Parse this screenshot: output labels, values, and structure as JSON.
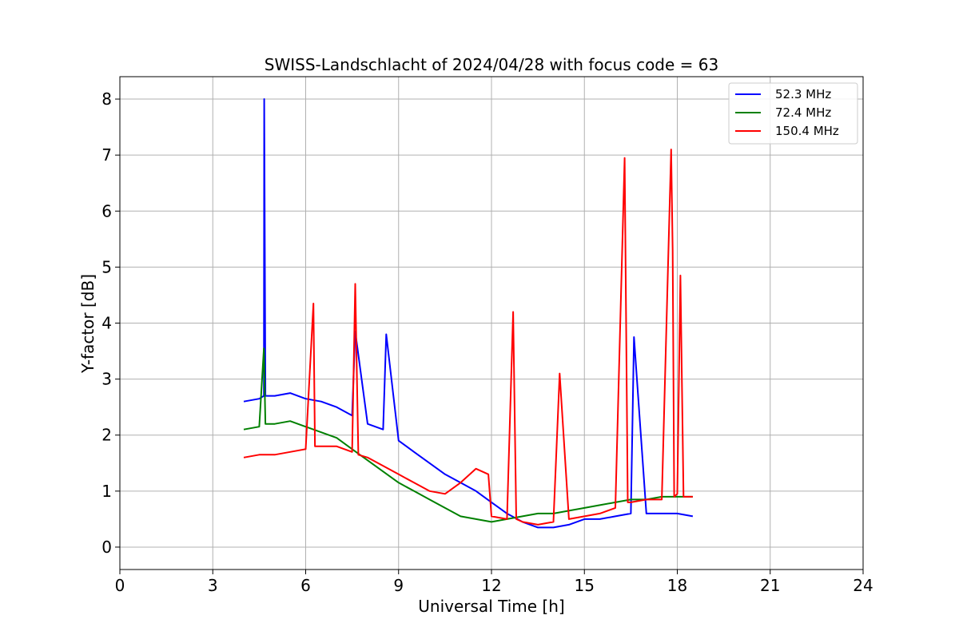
{
  "chart_data": {
    "type": "line",
    "title": "SWISS-Landschlacht of 2024/04/28 with focus code = 63",
    "xlabel": "Universal Time [h]",
    "ylabel": "Y-factor [dB]",
    "xlim": [
      0,
      24
    ],
    "ylim": [
      -0.4,
      8.4
    ],
    "xticks": [
      0,
      3,
      6,
      9,
      12,
      15,
      18,
      21,
      24
    ],
    "yticks": [
      0,
      1,
      2,
      3,
      4,
      5,
      6,
      7,
      8
    ],
    "grid": true,
    "legend_position": "top-right",
    "series": [
      {
        "name": "  52.3 MHz",
        "color": "#0000ff",
        "x": [
          4.0,
          4.5,
          4.65,
          4.66,
          4.7,
          5.0,
          5.5,
          6.0,
          6.5,
          7.0,
          7.5,
          7.6,
          8.0,
          8.5,
          8.6,
          9.0,
          9.5,
          10.0,
          10.5,
          11.0,
          11.5,
          12.0,
          12.5,
          13.0,
          13.5,
          14.0,
          14.5,
          15.0,
          15.5,
          16.0,
          16.5,
          16.6,
          17.0,
          17.5,
          18.0,
          18.5
        ],
        "y": [
          2.6,
          2.65,
          2.7,
          8.0,
          2.7,
          2.7,
          2.75,
          2.65,
          2.6,
          2.5,
          2.35,
          3.85,
          2.2,
          2.1,
          3.8,
          1.9,
          1.7,
          1.5,
          1.3,
          1.15,
          1.0,
          0.8,
          0.6,
          0.45,
          0.35,
          0.35,
          0.4,
          0.5,
          0.5,
          0.55,
          0.6,
          3.75,
          0.6,
          0.6,
          0.6,
          0.55
        ]
      },
      {
        "name": "  72.4 MHz",
        "color": "#008000",
        "x": [
          4.0,
          4.5,
          4.65,
          4.7,
          5.0,
          5.5,
          6.0,
          6.5,
          7.0,
          7.5,
          8.0,
          8.5,
          9.0,
          9.5,
          10.0,
          10.5,
          11.0,
          11.5,
          12.0,
          12.5,
          13.0,
          13.5,
          14.0,
          14.5,
          15.0,
          15.5,
          16.0,
          16.5,
          17.0,
          17.5,
          18.0,
          18.5
        ],
        "y": [
          2.1,
          2.15,
          3.55,
          2.2,
          2.2,
          2.25,
          2.15,
          2.05,
          1.95,
          1.75,
          1.55,
          1.35,
          1.15,
          1.0,
          0.85,
          0.7,
          0.55,
          0.5,
          0.45,
          0.5,
          0.55,
          0.6,
          0.6,
          0.65,
          0.7,
          0.75,
          0.8,
          0.85,
          0.85,
          0.9,
          0.9,
          0.9
        ]
      },
      {
        "name": "150.4 MHz",
        "color": "#ff0000",
        "x": [
          4.0,
          4.5,
          5.0,
          5.5,
          6.0,
          6.25,
          6.3,
          6.5,
          7.0,
          7.5,
          7.6,
          7.7,
          8.0,
          8.5,
          9.0,
          9.5,
          10.0,
          10.5,
          11.0,
          11.5,
          11.9,
          12.0,
          12.5,
          12.7,
          12.8,
          13.0,
          13.5,
          14.0,
          14.2,
          14.5,
          15.0,
          15.5,
          16.0,
          16.3,
          16.4,
          16.5,
          17.0,
          17.5,
          17.8,
          17.85,
          17.9,
          18.0,
          18.1,
          18.2,
          18.5
        ],
        "y": [
          1.6,
          1.65,
          1.65,
          1.7,
          1.75,
          4.35,
          1.8,
          1.8,
          1.8,
          1.7,
          4.7,
          1.65,
          1.6,
          1.45,
          1.3,
          1.15,
          1.0,
          0.95,
          1.15,
          1.4,
          1.3,
          0.55,
          0.5,
          4.2,
          0.5,
          0.45,
          0.4,
          0.45,
          3.1,
          0.5,
          0.55,
          0.6,
          0.7,
          6.95,
          0.8,
          0.8,
          0.85,
          0.85,
          7.1,
          5.3,
          0.9,
          0.95,
          4.85,
          0.9,
          0.9
        ]
      }
    ]
  }
}
